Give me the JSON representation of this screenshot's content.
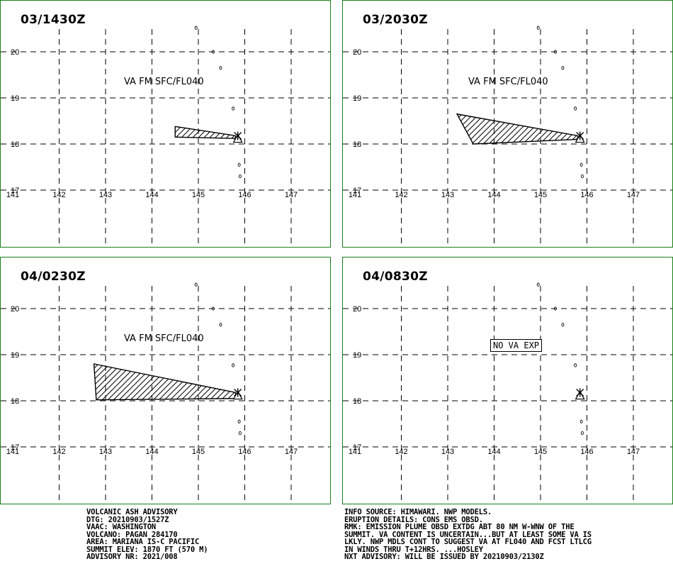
{
  "panels": [
    {
      "time": "03/1430Z",
      "va_label": "VA FM SFC/FL040",
      "polygon": [
        [
          144.5,
          18.38
        ],
        [
          145.8,
          18.18
        ],
        [
          145.8,
          18.12
        ],
        [
          144.5,
          18.15
        ]
      ]
    },
    {
      "time": "03/2030Z",
      "va_label": "VA FM SFC/FL040",
      "polygon": [
        [
          143.2,
          18.65
        ],
        [
          145.8,
          18.18
        ],
        [
          145.8,
          18.1
        ],
        [
          143.55,
          18.0
        ]
      ]
    },
    {
      "time": "04/0230Z",
      "va_label": "VA FM SFC/FL040",
      "polygon": [
        [
          142.75,
          18.8
        ],
        [
          145.8,
          18.18
        ],
        [
          145.8,
          18.05
        ],
        [
          142.8,
          18.02
        ]
      ]
    },
    {
      "time": "04/0830Z",
      "no_va_label": "NO VA EXP"
    }
  ],
  "axes": {
    "lat_labels": [
      "20",
      "19",
      "18",
      "17"
    ],
    "lon_labels": [
      "141",
      "142",
      "143",
      "144",
      "145",
      "146",
      "147"
    ]
  },
  "volcano": {
    "name": "PAGAN",
    "lon": 145.85,
    "lat": 18.13
  },
  "advisory_left": [
    "VOLCANIC ASH ADVISORY",
    "DTG: 20210903/1527Z",
    "VAAC: WASHINGTON",
    "VOLCANO: PAGAN 284170",
    "AREA: MARIANA IS-C PACIFIC",
    "SUMMIT ELEV: 1870 FT (570 M)",
    "ADVISORY NR: 2021/008"
  ],
  "advisory_right": [
    "INFO SOURCE: HIMAWARI. NWP MODELS.",
    "ERUPTION DETAILS: CONS EMS OBSD.",
    "RMK: EMISSION PLUME OBSD EXTDG ABT 80 NM W-WNW OF THE",
    "SUMMIT. VA CONTENT IS UNCERTAIN...BUT AT LEAST SOME VA IS",
    "LKLY. NWP MDLS CONT TO SUGGEST VA AT FL040 AND FCST LTLCG",
    "IN WINDS THRU T+12HRS. ...HOSLEY",
    "NXT ADVISORY: WILL BE ISSUED BY 20210903/2130Z"
  ],
  "colors": {
    "frame": "#1a7f1a",
    "grid": "#000000",
    "hatch": "#000000"
  }
}
